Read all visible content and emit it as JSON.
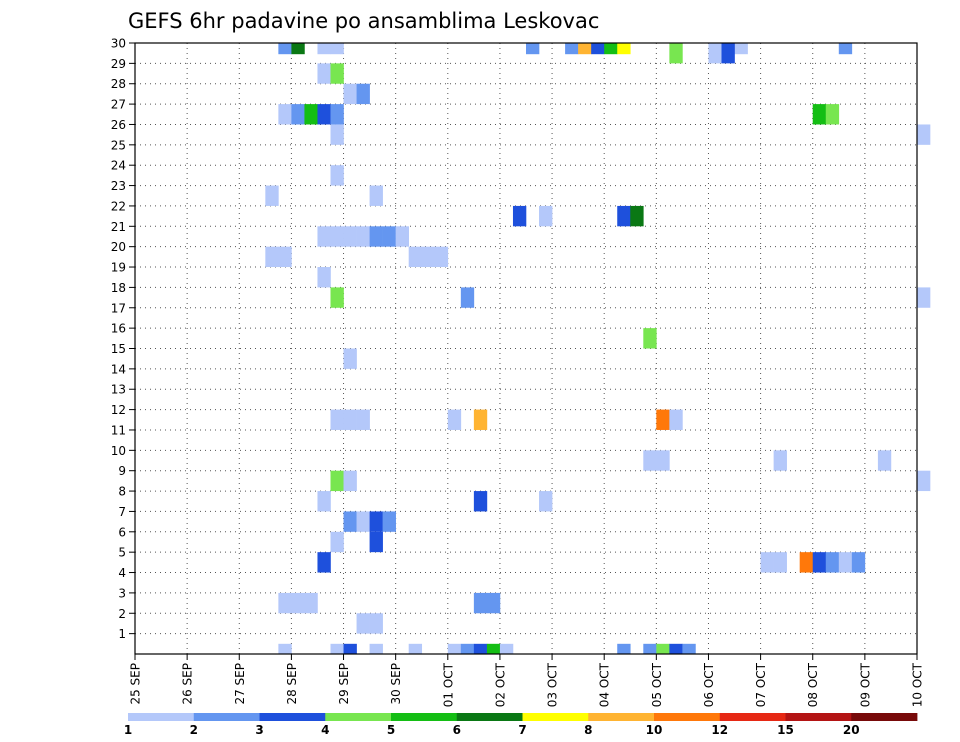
{
  "chart_data": {
    "type": "heatmap",
    "title": "GEFS 6hr padavine po ansamblima Leskovac",
    "xlabel": "",
    "ylabel": "",
    "x_ticks": [
      "25 SEP",
      "26 SEP",
      "27 SEP",
      "28 SEP",
      "29 SEP",
      "30 SEP",
      "01 OCT",
      "02 OCT",
      "03 OCT",
      "04 OCT",
      "05 OCT",
      "06 OCT",
      "07 OCT",
      "08 OCT",
      "09 OCT",
      "10 OCT"
    ],
    "y_ticks": [
      "1",
      "2",
      "3",
      "4",
      "5",
      "6",
      "7",
      "8",
      "9",
      "10",
      "11",
      "12",
      "13",
      "14",
      "15",
      "16",
      "17",
      "18",
      "19",
      "20",
      "21",
      "22",
      "23",
      "24",
      "25",
      "26",
      "27",
      "28",
      "29",
      "30"
    ],
    "x_units": "6-hour steps from 25 SEP 00",
    "grid": true,
    "colorbar": {
      "levels": [
        "1",
        "2",
        "3",
        "4",
        "5",
        "6",
        "7",
        "8",
        "10",
        "12",
        "15",
        "20"
      ],
      "colors": [
        "#b4c8fa",
        "#6496f0",
        "#1e50dc",
        "#78e650",
        "#14be14",
        "#0a7814",
        "#ffff00",
        "#ffb432",
        "#ff780a",
        "#e62814",
        "#b41414",
        "#780a0a"
      ]
    },
    "cells": [
      [
        11,
        30,
        2
      ],
      [
        12,
        30,
        6
      ],
      [
        14,
        30,
        1
      ],
      [
        15,
        30,
        1
      ],
      [
        30,
        30,
        2
      ],
      [
        33,
        30,
        2
      ],
      [
        34,
        30,
        8
      ],
      [
        35,
        30,
        3
      ],
      [
        36,
        30,
        5
      ],
      [
        37,
        30,
        7
      ],
      [
        46,
        30,
        1
      ],
      [
        54,
        30,
        2
      ],
      [
        41,
        29,
        4
      ],
      [
        44,
        29,
        1
      ],
      [
        45,
        29,
        3
      ],
      [
        14,
        28,
        1
      ],
      [
        15,
        28,
        4
      ],
      [
        16,
        27,
        1
      ],
      [
        17,
        27,
        2
      ],
      [
        11,
        26,
        1
      ],
      [
        12,
        26,
        2
      ],
      [
        13,
        26,
        5
      ],
      [
        14,
        26,
        3
      ],
      [
        15,
        26,
        2
      ],
      [
        52,
        26,
        5
      ],
      [
        53,
        26,
        4
      ],
      [
        15,
        25,
        1
      ],
      [
        60,
        25,
        1
      ],
      [
        15,
        23,
        1
      ],
      [
        10,
        22,
        1
      ],
      [
        18,
        22,
        1
      ],
      [
        29,
        21,
        3
      ],
      [
        31,
        21,
        1
      ],
      [
        37,
        21,
        3
      ],
      [
        38,
        21,
        6
      ],
      [
        14,
        20,
        1
      ],
      [
        15,
        20,
        1
      ],
      [
        16,
        20,
        1
      ],
      [
        17,
        20,
        1
      ],
      [
        18,
        20,
        2
      ],
      [
        19,
        20,
        2
      ],
      [
        20,
        20,
        1
      ],
      [
        10,
        19,
        1
      ],
      [
        11,
        19,
        1
      ],
      [
        21,
        19,
        1
      ],
      [
        22,
        19,
        1
      ],
      [
        23,
        19,
        1
      ],
      [
        14,
        18,
        1
      ],
      [
        15,
        17,
        4
      ],
      [
        25,
        17,
        2
      ],
      [
        60,
        17,
        1
      ],
      [
        39,
        15,
        4
      ],
      [
        16,
        14,
        1
      ],
      [
        15,
        11,
        1
      ],
      [
        16,
        11,
        1
      ],
      [
        17,
        11,
        1
      ],
      [
        24,
        11,
        1
      ],
      [
        26,
        11,
        8
      ],
      [
        40,
        11,
        9
      ],
      [
        41,
        11,
        1
      ],
      [
        39,
        9,
        1
      ],
      [
        40,
        9,
        1
      ],
      [
        49,
        9,
        1
      ],
      [
        57,
        9,
        1
      ],
      [
        15,
        8,
        4
      ],
      [
        16,
        8,
        1
      ],
      [
        60,
        8,
        1
      ],
      [
        14,
        7,
        1
      ],
      [
        26,
        7,
        3
      ],
      [
        31,
        7,
        1
      ],
      [
        16,
        6,
        2
      ],
      [
        17,
        6,
        1
      ],
      [
        18,
        6,
        3
      ],
      [
        19,
        6,
        2
      ],
      [
        15,
        5,
        1
      ],
      [
        18,
        5,
        3
      ],
      [
        14,
        4,
        3
      ],
      [
        48,
        4,
        1
      ],
      [
        49,
        4,
        1
      ],
      [
        51,
        4,
        9
      ],
      [
        52,
        4,
        3
      ],
      [
        53,
        4,
        2
      ],
      [
        54,
        4,
        1
      ],
      [
        55,
        4,
        2
      ],
      [
        11,
        2,
        1
      ],
      [
        12,
        2,
        1
      ],
      [
        13,
        2,
        1
      ],
      [
        26,
        2,
        2
      ],
      [
        27,
        2,
        2
      ],
      [
        17,
        1,
        1
      ],
      [
        18,
        1,
        1
      ],
      [
        11,
        0,
        1
      ],
      [
        15,
        0,
        1
      ],
      [
        16,
        0,
        3
      ],
      [
        18,
        0,
        1
      ],
      [
        21,
        0,
        1
      ],
      [
        24,
        0,
        1
      ],
      [
        25,
        0,
        2
      ],
      [
        26,
        0,
        3
      ],
      [
        27,
        0,
        5
      ],
      [
        28,
        0,
        1
      ],
      [
        37,
        0,
        2
      ],
      [
        39,
        0,
        2
      ],
      [
        40,
        0,
        4
      ],
      [
        41,
        0,
        3
      ],
      [
        42,
        0,
        2
      ]
    ]
  }
}
